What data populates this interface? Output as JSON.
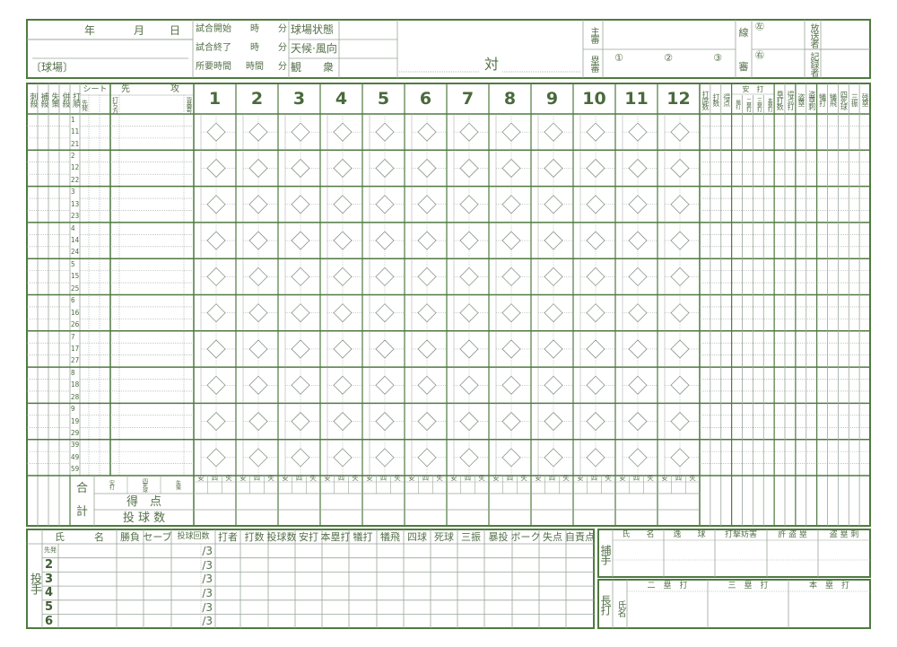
{
  "colors": {
    "frame": "#4f7a40",
    "rule": "#9aa59a",
    "text": "#55704a"
  },
  "header": {
    "year": "年",
    "month": "月",
    "day": "日",
    "stadium": "〔球場〕",
    "start": "試合開始",
    "end": "試合終了",
    "duration": "所要時間",
    "hour": "時",
    "minute": "分",
    "hours": "時間",
    "field_condition": "球場状態",
    "weather": "天候·風向",
    "audience": "観　　衆",
    "vs": "対",
    "chief_umpire": "主審",
    "base_umpire": "塁審",
    "umpire_numbers": [
      "①",
      "②",
      "③"
    ],
    "line_umpire_top": "線",
    "line_umpire_bottom": "審",
    "left": "㊧",
    "right": "㊨",
    "broadcaster": "放送者",
    "scorer": "記録者"
  },
  "grid": {
    "fielding_headers": [
      "刺殺",
      "補殺",
      "失策",
      "併殺",
      "打順"
    ],
    "seat": "シート",
    "starter": "先発",
    "batting_first_a": "先",
    "batting_first_b": "攻",
    "batting_style": "打ち方",
    "uniform_number": "背番号",
    "innings": [
      "1",
      "2",
      "3",
      "4",
      "5",
      "6",
      "7",
      "8",
      "9",
      "10",
      "11",
      "12"
    ],
    "orders": [
      [
        "1",
        "11",
        "21"
      ],
      [
        "2",
        "12",
        "22"
      ],
      [
        "3",
        "13",
        "23"
      ],
      [
        "4",
        "14",
        "24"
      ],
      [
        "5",
        "15",
        "25"
      ],
      [
        "6",
        "16",
        "26"
      ],
      [
        "7",
        "17",
        "27"
      ],
      [
        "8",
        "18",
        "28"
      ],
      [
        "9",
        "19",
        "29"
      ],
      [
        "39",
        "49",
        "59"
      ]
    ],
    "stat_headers": [
      "打席数",
      "打数",
      "得点",
      "単打",
      "二塁打",
      "三塁打",
      "本塁打",
      "塁打数",
      "得点打",
      "盗塁",
      "盗塁刺",
      "犠打",
      "犠飛",
      "四死球",
      "三振",
      "残塁"
    ],
    "hits_group": "安　打"
  },
  "totals": {
    "total_a": "合",
    "total_b": "計",
    "hits": "安打",
    "walks": "四死球",
    "errors": "失策",
    "runs": "得　点",
    "pitches": "投 球 数",
    "inning_sub": [
      "安",
      "四",
      "失"
    ]
  },
  "pitchers": {
    "label": "投手",
    "headers": [
      "氏　　　名",
      "勝負",
      "セーブ",
      "投球回数",
      "打者",
      "打数",
      "投球数",
      "安打",
      "本塁打",
      "犠打",
      "犠飛",
      "四球",
      "死球",
      "三振",
      "暴投",
      "ボーク",
      "失点",
      "自責点"
    ],
    "rows": [
      "先発",
      "2",
      "3",
      "4",
      "5",
      "6"
    ],
    "innings_suffix": "/3"
  },
  "catcher": {
    "label": "捕手",
    "headers": [
      "氏　　名",
      "逸　　球",
      "打撃妨害",
      "許 盗 塁",
      "盗 塁 刺"
    ]
  },
  "extra_hits": {
    "label": "長打",
    "name": "氏名",
    "headers": [
      "二　塁　打",
      "三　塁　打",
      "本　塁　打"
    ]
  }
}
